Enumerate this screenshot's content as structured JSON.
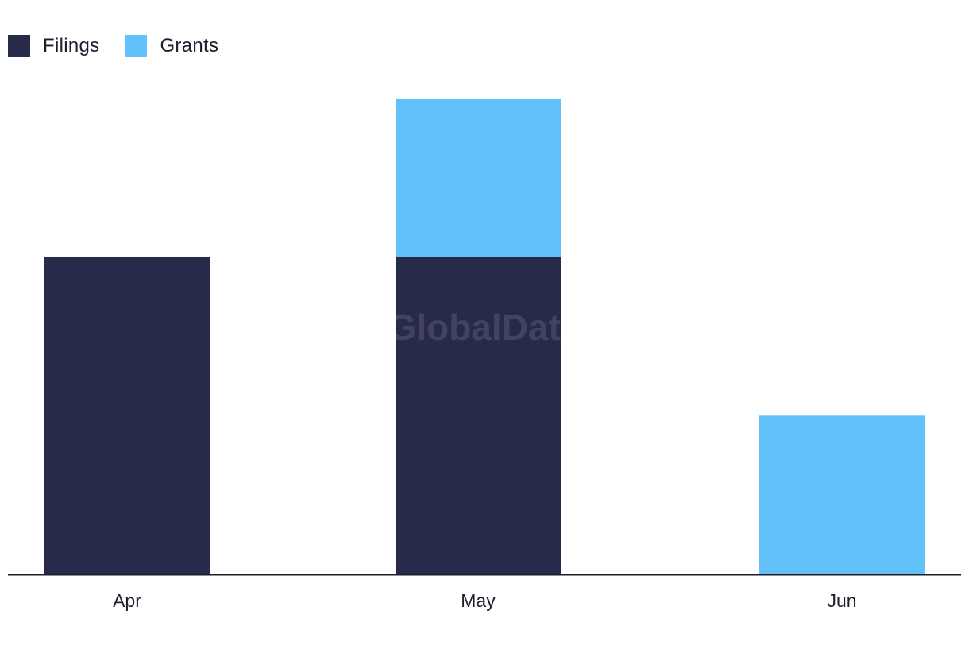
{
  "chart_data": {
    "type": "bar",
    "stacked": true,
    "categories": [
      "Apr",
      "May",
      "Jun"
    ],
    "series": [
      {
        "name": "Filings",
        "values": [
          2,
          2,
          0
        ],
        "color": "#282a4a"
      },
      {
        "name": "Grants",
        "values": [
          0,
          1,
          1
        ],
        "color": "#63c1f9"
      }
    ],
    "title": "",
    "xlabel": "",
    "ylabel": "",
    "ylim": [
      0,
      3
    ],
    "grid": false,
    "legend_position": "top-left",
    "watermark": "GlobalData"
  }
}
